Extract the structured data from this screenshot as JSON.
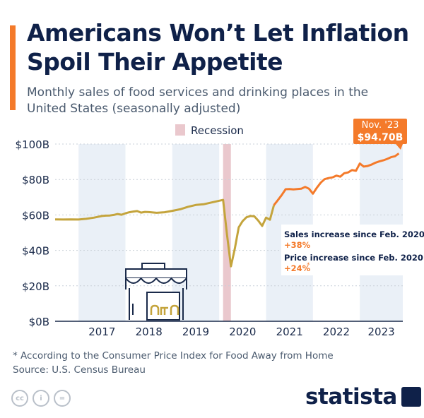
{
  "header": {
    "title": "Americans Won’t Let Inflation Spoil Their Appetite",
    "subtitle": "Monthly sales of food services and drinking places in the United States (seasonally adjusted)"
  },
  "legend": {
    "recession_label": "Recession"
  },
  "callout": {
    "label": "Nov. '23",
    "value": "$94.70B"
  },
  "info_box": {
    "sales_label": "Sales increase since Feb. 2020:",
    "sales_value": "+38%",
    "price_label": "Price increase since Feb. 2020:",
    "price_value": "+24%",
    "price_marker": "*"
  },
  "footer": {
    "footnote": "* According to the Consumer Price Index for Food Away from Home",
    "source": "Source: U.S. Census Bureau",
    "brand": "statista",
    "license_icons": [
      "cc",
      "i",
      "="
    ]
  },
  "colors": {
    "line_pre": "#c4a43c",
    "line_post": "#f47a2a",
    "recession_band": "#eac8cd",
    "year_band": "#eaf0f7",
    "accent": "#f47a2a",
    "text_dark": "#0f2149"
  },
  "chart_data": {
    "type": "line",
    "title": "Americans Won’t Let Inflation Spoil Their Appetite",
    "xlabel": "",
    "ylabel": "",
    "ylim": [
      0,
      100
    ],
    "y_ticks": [
      "$0B",
      "$20B",
      "$40B",
      "$60B",
      "$80B",
      "$100B"
    ],
    "y_tick_values": [
      0,
      20,
      40,
      60,
      80,
      100
    ],
    "x_start": 2016.5,
    "x_end": 2023.917,
    "year_labels": [
      "2017",
      "2018",
      "2019",
      "2020",
      "2021",
      "2022",
      "2023"
    ],
    "recession": [
      2020.083,
      2020.25
    ],
    "color_switch_x": 2021.167,
    "series": [
      {
        "name": "Monthly sales (billion USD)",
        "x": [
          2016.5,
          2016.667,
          2016.833,
          2017.0,
          2017.167,
          2017.333,
          2017.5,
          2017.583,
          2017.667,
          2017.75,
          2017.833,
          2017.917,
          2018.0,
          2018.083,
          2018.167,
          2018.25,
          2018.333,
          2018.417,
          2018.5,
          2018.667,
          2018.833,
          2019.0,
          2019.167,
          2019.333,
          2019.5,
          2019.667,
          2019.833,
          2020.0,
          2020.083,
          2020.167,
          2020.25,
          2020.333,
          2020.417,
          2020.5,
          2020.583,
          2020.667,
          2020.75,
          2020.833,
          2020.917,
          2021.0,
          2021.083,
          2021.167,
          2021.25,
          2021.333,
          2021.417,
          2021.5,
          2021.583,
          2021.667,
          2021.75,
          2021.833,
          2021.917,
          2022.0,
          2022.083,
          2022.167,
          2022.25,
          2022.333,
          2022.417,
          2022.5,
          2022.583,
          2022.667,
          2022.75,
          2022.833,
          2022.917,
          2023.0,
          2023.083,
          2023.167,
          2023.25,
          2023.333,
          2023.417,
          2023.5,
          2023.583,
          2023.667,
          2023.75,
          2023.833
        ],
        "values": [
          57.5,
          57.4,
          57.5,
          57.4,
          57.8,
          58.5,
          59.4,
          59.6,
          59.7,
          60.0,
          60.5,
          60.1,
          60.9,
          61.5,
          61.9,
          62.2,
          61.3,
          61.7,
          61.6,
          61.2,
          61.5,
          62.3,
          63.2,
          64.6,
          65.6,
          66.0,
          67.0,
          68.0,
          68.5,
          49.0,
          31.0,
          41.0,
          53.0,
          56.5,
          58.7,
          59.4,
          59.2,
          56.8,
          53.8,
          58.5,
          57.3,
          65.5,
          68.3,
          71.2,
          74.5,
          74.6,
          74.4,
          74.6,
          74.8,
          75.8,
          74.8,
          72.0,
          75.3,
          78.2,
          80.2,
          80.8,
          81.2,
          82.2,
          81.6,
          83.5,
          84.0,
          85.3,
          84.9,
          89.0,
          87.3,
          87.6,
          88.4,
          89.5,
          90.2,
          90.8,
          91.6,
          92.6,
          93.1,
          94.7
        ]
      }
    ],
    "annotations": [
      {
        "label": "Nov. '23",
        "value": 94.7
      },
      {
        "label": "Sales increase since Feb. 2020",
        "value": "+38%"
      },
      {
        "label": "Price increase since Feb. 2020",
        "value": "+24%"
      }
    ]
  }
}
